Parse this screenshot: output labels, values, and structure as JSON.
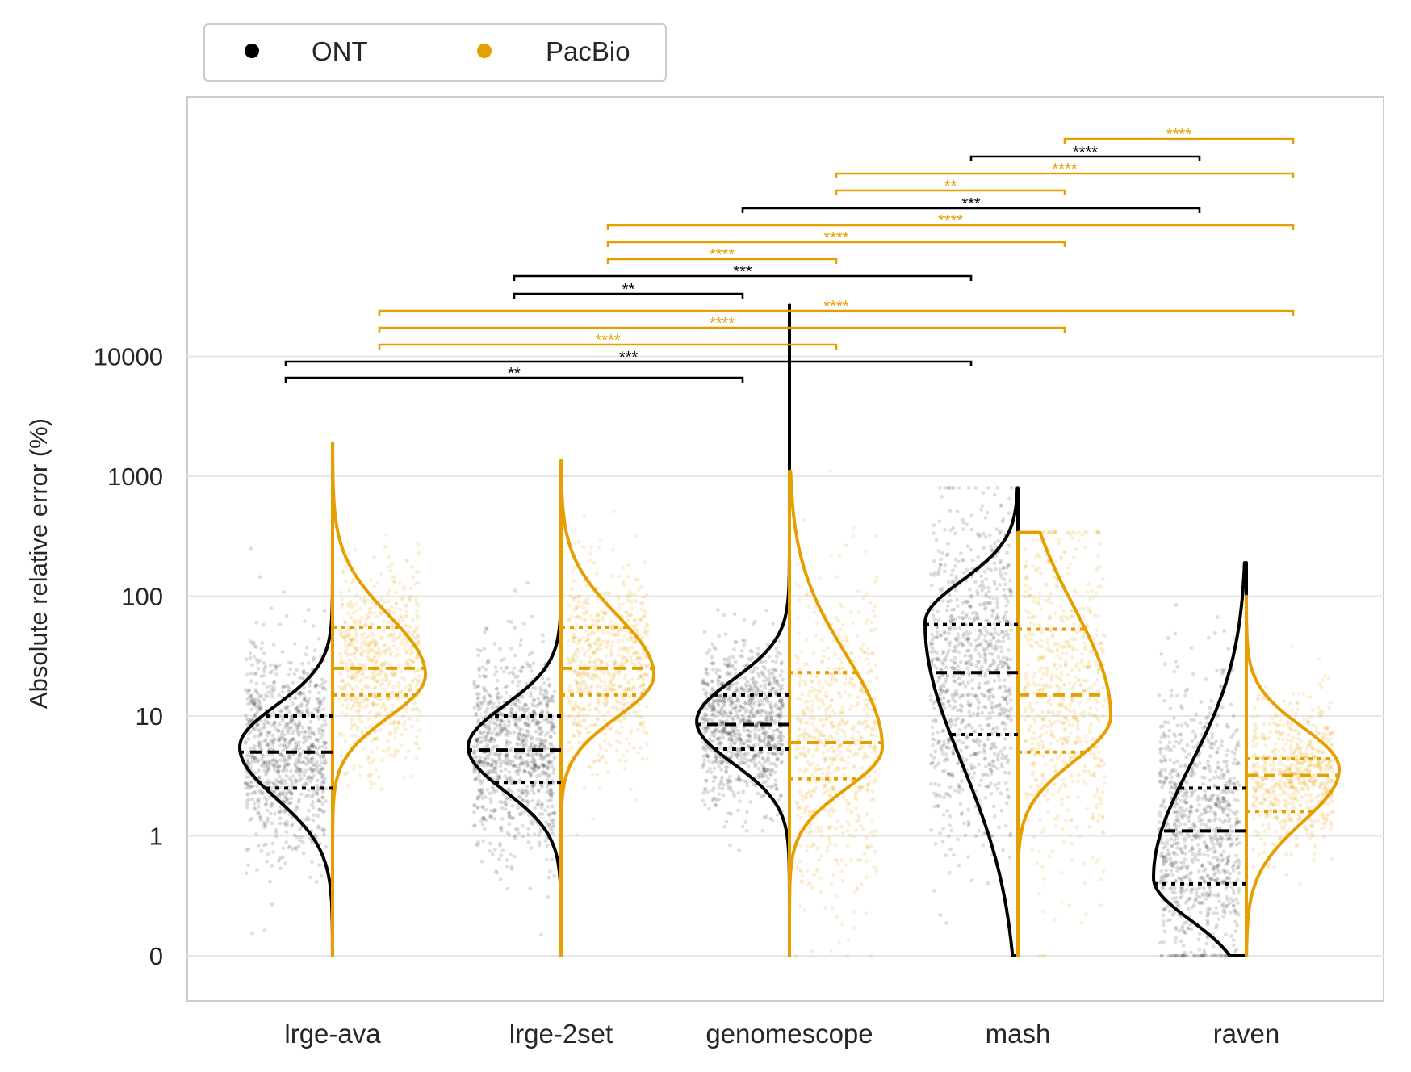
{
  "legend": {
    "placement": "top-left, outside plot",
    "items": [
      {
        "label": "ONT",
        "color": "#000000"
      },
      {
        "label": "PacBio",
        "color": "#e69f00"
      }
    ]
  },
  "chart_data": {
    "type": "split violin with strip points",
    "xlabel": "",
    "ylabel": "Absolute relative error (%)",
    "yscale": "symlog",
    "ylim": [
      -0.3,
      1000000
    ],
    "yticks": [
      {
        "value": 0,
        "label": "0"
      },
      {
        "value": 1,
        "label": "1"
      },
      {
        "value": 10,
        "label": "10"
      },
      {
        "value": 100,
        "label": "100"
      },
      {
        "value": 1000,
        "label": "1000"
      },
      {
        "value": 10000,
        "label": "10000"
      }
    ],
    "grid": "horizontal",
    "categories": [
      "lrge-ava",
      "lrge-2set",
      "genomescope",
      "mash",
      "raven"
    ],
    "series": [
      {
        "name": "ONT",
        "color": "#000000",
        "quartiles": [
          {
            "q1": 2.5,
            "median": 5.0,
            "q3": 10.0,
            "max": 260,
            "mode": 5.5
          },
          {
            "q1": 2.8,
            "median": 5.2,
            "q3": 10.0,
            "max": 150,
            "mode": 5.5
          },
          {
            "q1": 5.3,
            "median": 8.5,
            "q3": 15.0,
            "max": 27000,
            "mode": 9.0
          },
          {
            "q1": 7.0,
            "median": 23.0,
            "q3": 58.0,
            "max": 800,
            "mode": 60
          },
          {
            "q1": 0.6,
            "median": 1.1,
            "q3": 2.5,
            "max": 190,
            "mode": 0.65
          }
        ]
      },
      {
        "name": "PacBio",
        "color": "#e69f00",
        "quartiles": [
          {
            "q1": 15.0,
            "median": 25.0,
            "q3": 55.0,
            "max": 1900,
            "mode": 22
          },
          {
            "q1": 15.0,
            "median": 25.0,
            "q3": 55.0,
            "max": 1350,
            "mode": 22
          },
          {
            "q1": 3.0,
            "median": 6.0,
            "q3": 23.0,
            "max": 1100,
            "mode": 5.5
          },
          {
            "q1": 5.0,
            "median": 15.0,
            "q3": 53.0,
            "max": 340,
            "mode": 10
          },
          {
            "q1": 1.6,
            "median": 3.2,
            "q3": 4.4,
            "max": 100,
            "mode": 3.6
          }
        ]
      }
    ],
    "significance": [
      {
        "text": "**",
        "series": "ONT",
        "from": "lrge-ava",
        "to": "genomescope"
      },
      {
        "text": "***",
        "series": "ONT",
        "from": "lrge-ava",
        "to": "mash"
      },
      {
        "text": "****",
        "series": "PacBio",
        "from": "lrge-ava",
        "to": "genomescope"
      },
      {
        "text": "****",
        "series": "PacBio",
        "from": "lrge-ava",
        "to": "mash"
      },
      {
        "text": "****",
        "series": "PacBio",
        "from": "lrge-ava",
        "to": "raven"
      },
      {
        "text": "**",
        "series": "ONT",
        "from": "lrge-2set",
        "to": "genomescope"
      },
      {
        "text": "***",
        "series": "ONT",
        "from": "lrge-2set",
        "to": "mash"
      },
      {
        "text": "****",
        "series": "PacBio",
        "from": "lrge-2set",
        "to": "genomescope"
      },
      {
        "text": "****",
        "series": "PacBio",
        "from": "lrge-2set",
        "to": "mash"
      },
      {
        "text": "****",
        "series": "PacBio",
        "from": "lrge-2set",
        "to": "raven"
      },
      {
        "text": "***",
        "series": "ONT",
        "from": "genomescope",
        "to": "raven"
      },
      {
        "text": "**",
        "series": "PacBio",
        "from": "genomescope",
        "to": "mash"
      },
      {
        "text": "****",
        "series": "PacBio",
        "from": "genomescope",
        "to": "raven"
      },
      {
        "text": "****",
        "series": "ONT",
        "from": "mash",
        "to": "raven"
      },
      {
        "text": "****",
        "series": "PacBio",
        "from": "mash",
        "to": "raven"
      }
    ]
  }
}
